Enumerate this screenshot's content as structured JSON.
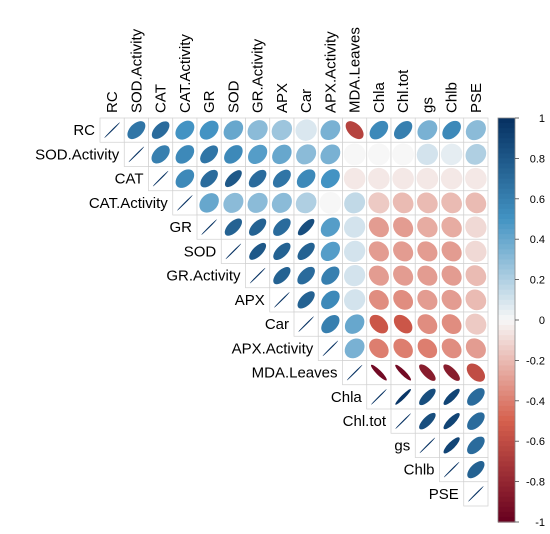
{
  "chart_data": {
    "type": "heatmap",
    "subtype": "correlation-ellipse-upper",
    "variables": [
      "RC",
      "SOD.Activity",
      "CAT",
      "CAT.Activity",
      "GR",
      "SOD",
      "GR.Activity",
      "APX",
      "Car",
      "APX.Activity",
      "MDA.Leaves",
      "Chla",
      "Chl.tot",
      "gs",
      "Chlb",
      "PSE"
    ],
    "matrix": [
      [
        1.0,
        0.65,
        0.7,
        0.5,
        0.5,
        0.4,
        0.3,
        0.25,
        0.08,
        0.35,
        -0.65,
        0.55,
        0.6,
        0.35,
        0.55,
        0.3
      ],
      [
        0.65,
        1.0,
        0.6,
        0.55,
        0.65,
        0.55,
        0.45,
        0.4,
        0.3,
        0.35,
        0.0,
        0.0,
        0.0,
        0.1,
        0.05,
        0.2
      ],
      [
        0.7,
        0.6,
        1.0,
        0.55,
        0.7,
        0.8,
        0.7,
        0.65,
        0.55,
        0.5,
        -0.05,
        -0.05,
        -0.05,
        -0.05,
        -0.05,
        -0.05
      ],
      [
        0.5,
        0.55,
        0.55,
        1.0,
        0.4,
        0.3,
        0.3,
        0.3,
        0.2,
        0.0,
        0.15,
        -0.15,
        -0.2,
        -0.2,
        -0.2,
        -0.2
      ],
      [
        0.5,
        0.65,
        0.7,
        0.4,
        1.0,
        0.75,
        0.75,
        0.7,
        0.85,
        0.45,
        0.1,
        -0.3,
        -0.3,
        -0.25,
        -0.25,
        -0.1
      ],
      [
        0.4,
        0.55,
        0.8,
        0.3,
        0.75,
        1.0,
        0.8,
        0.75,
        0.75,
        0.45,
        0.1,
        -0.3,
        -0.3,
        -0.3,
        -0.3,
        -0.1
      ],
      [
        0.3,
        0.45,
        0.7,
        0.3,
        0.75,
        0.8,
        1.0,
        0.75,
        0.7,
        0.6,
        0.1,
        -0.3,
        -0.3,
        -0.3,
        -0.3,
        -0.2
      ],
      [
        0.25,
        0.4,
        0.65,
        0.3,
        0.7,
        0.75,
        0.75,
        1.0,
        0.75,
        0.55,
        0.1,
        -0.35,
        -0.35,
        -0.3,
        -0.3,
        -0.2
      ],
      [
        0.08,
        0.3,
        0.55,
        0.2,
        0.85,
        0.75,
        0.7,
        0.75,
        1.0,
        0.6,
        0.4,
        -0.55,
        -0.55,
        -0.35,
        -0.35,
        -0.15
      ],
      [
        0.35,
        0.35,
        0.5,
        0.0,
        0.45,
        0.45,
        0.6,
        0.55,
        0.6,
        1.0,
        0.35,
        -0.4,
        -0.4,
        -0.4,
        -0.35,
        -0.3
      ],
      [
        -0.65,
        0.0,
        -0.05,
        0.15,
        0.1,
        0.1,
        0.1,
        0.1,
        0.4,
        0.35,
        1.0,
        -0.95,
        -0.95,
        -0.85,
        -0.85,
        -0.6
      ],
      [
        0.55,
        0.0,
        -0.05,
        -0.15,
        -0.3,
        -0.3,
        -0.3,
        -0.35,
        -0.55,
        -0.4,
        -0.95,
        1.0,
        0.97,
        0.85,
        0.9,
        0.7
      ],
      [
        0.6,
        0.0,
        -0.05,
        -0.2,
        -0.3,
        -0.3,
        -0.3,
        -0.35,
        -0.55,
        -0.4,
        -0.95,
        0.97,
        1.0,
        0.85,
        0.9,
        0.7
      ],
      [
        0.35,
        0.1,
        -0.05,
        -0.2,
        -0.25,
        -0.3,
        -0.3,
        -0.3,
        -0.35,
        -0.4,
        -0.85,
        0.85,
        0.85,
        1.0,
        0.9,
        0.7
      ],
      [
        0.55,
        0.05,
        -0.05,
        -0.2,
        -0.25,
        -0.3,
        -0.3,
        -0.3,
        -0.35,
        -0.35,
        -0.85,
        0.9,
        0.9,
        0.9,
        1.0,
        0.75
      ],
      [
        0.3,
        0.2,
        -0.05,
        -0.2,
        -0.1,
        -0.1,
        -0.2,
        -0.2,
        -0.15,
        -0.3,
        -0.6,
        0.7,
        0.7,
        0.7,
        0.75,
        1.0
      ]
    ],
    "colorbar": {
      "ticks": [
        "1",
        "0.8",
        "0.6",
        "0.4",
        "0.2",
        "0",
        "-0.2",
        "-0.4",
        "-0.6",
        "-0.8",
        "-1"
      ],
      "range": [
        -1,
        1
      ]
    },
    "colors": {
      "strong_negative": "#67001F",
      "negative": "#D6604D",
      "neutral": "#F7F7F7",
      "positive": "#4393C3",
      "strong_positive": "#053061"
    }
  }
}
